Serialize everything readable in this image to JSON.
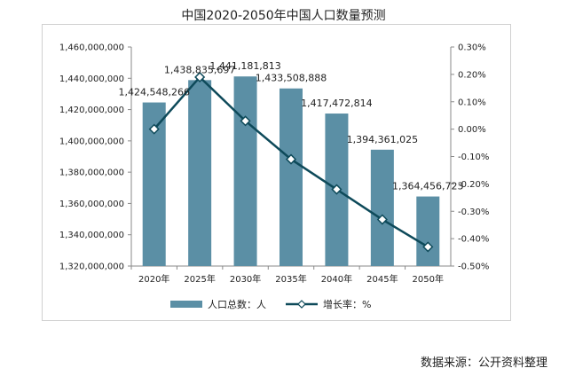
{
  "title": "中国2020-2050年中国人口数量预测",
  "source": "数据来源：公开资料整理",
  "colors": {
    "bar": "#5b8fa5",
    "line": "#0e4a5a",
    "marker_fill": "#ffffff"
  },
  "chart_data": {
    "type": "bar+line",
    "title": "中国2020-2050年中国人口数量预测",
    "categories": [
      "2020年",
      "2025年",
      "2030年",
      "2035年",
      "2040年",
      "2045年",
      "2050年"
    ],
    "series": [
      {
        "name": "人口总数：人",
        "type": "bar",
        "axis": "left",
        "values": [
          1424548266,
          1438835697,
          1441181813,
          1433508888,
          1417472814,
          1394361025,
          1364456723
        ],
        "labels": [
          "1,424,548,266",
          "1,438,835,697",
          "1,441,181,813",
          "1,433,508,888",
          "1,417,472,814",
          "1,394,361,025",
          "1,364,456,723"
        ]
      },
      {
        "name": "增长率：%",
        "type": "line",
        "axis": "right",
        "values": [
          0.0,
          0.19,
          0.03,
          -0.11,
          -0.22,
          -0.33,
          -0.43
        ]
      }
    ],
    "left_axis": {
      "min": 1320000000,
      "max": 1460000000,
      "ticks": [
        "1,320,000,000",
        "1,340,000,000",
        "1,360,000,000",
        "1,380,000,000",
        "1,400,000,000",
        "1,420,000,000",
        "1,440,000,000",
        "1,460,000,000"
      ]
    },
    "right_axis": {
      "min": -0.5,
      "max": 0.3,
      "ticks": [
        "-0.50%",
        "-0.40%",
        "-0.30%",
        "-0.20%",
        "-0.10%",
        "0.00%",
        "0.10%",
        "0.20%",
        "0.30%"
      ]
    },
    "grid": false,
    "legend": "bottom"
  }
}
